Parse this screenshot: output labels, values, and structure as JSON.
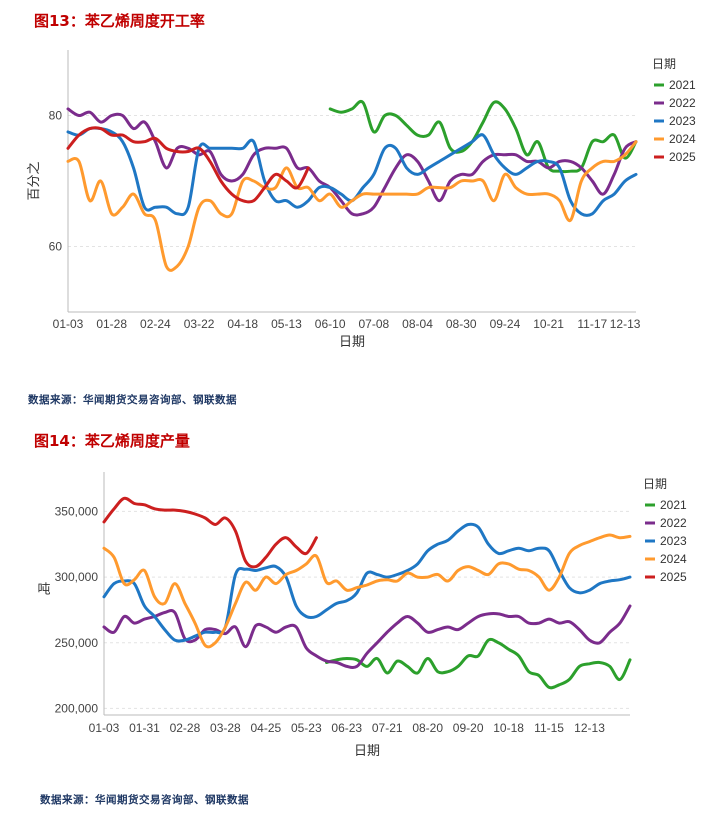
{
  "fig13": {
    "title": "图13：苯乙烯周度开工率",
    "source": "数据来源：华闻期货交易咨询部、钢联数据"
  },
  "fig14": {
    "title": "图14：苯乙烯周度产量",
    "source": "数据来源：华闻期货交易咨询部、钢联数据"
  },
  "chart_data": [
    {
      "type": "line",
      "title": "",
      "xlabel": "日期",
      "ylabel": "百分之",
      "legend_title": "日期",
      "legend_position": "right",
      "grid": true,
      "ylim": [
        50,
        90
      ],
      "y_ticks": [
        60,
        80
      ],
      "y_tick_labels": [
        "60",
        "80"
      ],
      "x_range": [
        1,
        53
      ],
      "x_ticks": [
        1,
        5,
        9,
        13,
        17,
        21,
        25,
        29,
        33,
        37,
        41,
        45,
        49,
        52
      ],
      "x_tick_labels": [
        "01-03",
        "01-28",
        "02-24",
        "03-22",
        "04-18",
        "05-13",
        "06-10",
        "07-08",
        "08-04",
        "08-30",
        "09-24",
        "10-21",
        "11-17",
        "12-13"
      ],
      "series": [
        {
          "name": "2021",
          "color": "#2ca02c",
          "x": [
            25,
            26,
            27,
            28,
            29,
            30,
            31,
            32,
            33,
            34,
            35,
            36,
            37,
            38,
            39,
            40,
            41,
            42,
            43,
            44,
            45,
            46,
            47,
            48,
            49,
            50,
            51,
            52,
            53
          ],
          "y": [
            81,
            80.5,
            81,
            82,
            77.5,
            80,
            80,
            78.5,
            77,
            77,
            79,
            75,
            74.5,
            76,
            79,
            82,
            81,
            78,
            74,
            76,
            72,
            71.5,
            71.5,
            72,
            76,
            76,
            77,
            73.5,
            76
          ]
        },
        {
          "name": "2022",
          "color": "#7b2c8c",
          "x": [
            1,
            2,
            3,
            4,
            5,
            6,
            7,
            8,
            9,
            10,
            11,
            12,
            13,
            14,
            15,
            16,
            17,
            18,
            19,
            20,
            21,
            22,
            23,
            24,
            25,
            26,
            27,
            28,
            29,
            30,
            31,
            32,
            33,
            34,
            35,
            36,
            37,
            38,
            39,
            40,
            41,
            42,
            43,
            44,
            45,
            46,
            47,
            48,
            49,
            50,
            51,
            52,
            53
          ],
          "y": [
            81,
            80,
            80.5,
            79,
            80,
            80,
            78,
            79,
            76,
            72,
            75,
            75,
            74,
            74.5,
            71,
            70,
            71,
            74,
            75,
            75,
            75,
            72,
            72,
            70,
            69,
            67,
            65,
            65,
            66,
            69,
            72,
            74,
            73,
            70,
            67,
            70,
            71,
            71,
            73,
            74,
            74,
            74,
            73,
            73,
            72,
            73,
            73,
            72,
            70,
            68,
            71,
            75,
            76
          ]
        },
        {
          "name": "2023",
          "color": "#1f77c4",
          "x": [
            1,
            2,
            3,
            4,
            5,
            6,
            7,
            8,
            9,
            10,
            11,
            12,
            13,
            14,
            15,
            16,
            17,
            18,
            19,
            20,
            21,
            22,
            23,
            24,
            25,
            26,
            27,
            28,
            29,
            30,
            31,
            32,
            33,
            34,
            35,
            36,
            37,
            38,
            39,
            40,
            41,
            42,
            43,
            44,
            45,
            46,
            47,
            48,
            49,
            50,
            51,
            52,
            53
          ],
          "y": [
            77.5,
            77,
            78,
            78,
            77.5,
            76,
            72,
            66,
            66,
            66,
            65,
            66,
            75,
            75,
            75,
            75,
            75,
            76,
            70,
            67,
            67,
            66,
            67,
            69,
            69,
            68,
            67,
            69,
            71,
            75,
            75,
            72,
            71,
            72,
            73,
            74,
            75,
            76,
            77,
            74,
            72,
            71,
            72,
            73,
            73,
            72,
            67,
            65,
            65,
            67,
            68,
            70,
            71
          ]
        },
        {
          "name": "2024",
          "color": "#ff9a2e",
          "x": [
            1,
            2,
            3,
            4,
            5,
            6,
            7,
            8,
            9,
            10,
            11,
            12,
            13,
            14,
            15,
            16,
            17,
            18,
            19,
            20,
            21,
            22,
            23,
            24,
            25,
            26,
            27,
            28,
            29,
            30,
            31,
            32,
            33,
            34,
            35,
            36,
            37,
            38,
            39,
            40,
            41,
            42,
            43,
            44,
            45,
            46,
            47,
            48,
            49,
            50,
            51,
            52,
            53
          ],
          "y": [
            73,
            73,
            67,
            70,
            65,
            66,
            68,
            65,
            64,
            57,
            57,
            60,
            66,
            67,
            65,
            65,
            70,
            70,
            69,
            69,
            72,
            69,
            69,
            67,
            68,
            66,
            67,
            68,
            68,
            68,
            68,
            68,
            68,
            69,
            69,
            69,
            70,
            70,
            70,
            67,
            71,
            69,
            68,
            68,
            68,
            67,
            64,
            70,
            72,
            73,
            73,
            74,
            76
          ]
        },
        {
          "name": "2025",
          "color": "#cc1f1f",
          "x": [
            1,
            2,
            3,
            4,
            5,
            6,
            7,
            8,
            9,
            10,
            11,
            12,
            13,
            14,
            15,
            16,
            17,
            18,
            19,
            20,
            21,
            22,
            23
          ],
          "y": [
            75,
            77,
            78,
            78,
            77,
            77,
            76,
            76,
            76.5,
            75,
            74.5,
            74.5,
            75,
            73,
            70,
            68,
            67,
            67,
            69,
            71,
            70,
            69,
            72
          ]
        }
      ]
    },
    {
      "type": "line",
      "title": "",
      "xlabel": "日期",
      "ylabel": "吨",
      "legend_title": "日期",
      "legend_position": "right",
      "grid": true,
      "ylim": [
        195000,
        380000
      ],
      "y_ticks": [
        200000,
        250000,
        300000,
        350000
      ],
      "y_tick_labels": [
        "200,000",
        "250,000",
        "300,000",
        "350,000"
      ],
      "x_range": [
        1,
        53
      ],
      "x_ticks": [
        1,
        5,
        9,
        13,
        17,
        21,
        25,
        29,
        33,
        37,
        41,
        45,
        49,
        52
      ],
      "x_tick_labels": [
        "01-03",
        "01-31",
        "02-28",
        "03-28",
        "04-25",
        "05-23",
        "06-23",
        "07-21",
        "08-20",
        "09-20",
        "10-18",
        "11-15",
        "12-13",
        ""
      ],
      "series": [
        {
          "name": "2021",
          "color": "#2ca02c",
          "x": [
            23,
            24,
            25,
            26,
            27,
            28,
            29,
            30,
            31,
            32,
            33,
            34,
            35,
            36,
            37,
            38,
            39,
            40,
            41,
            42,
            43,
            44,
            45,
            46,
            47,
            48,
            49,
            50,
            51,
            52,
            53
          ],
          "y": [
            235000,
            237000,
            238000,
            237000,
            232000,
            238000,
            227000,
            236000,
            232000,
            227000,
            238000,
            228000,
            228000,
            232000,
            240000,
            240000,
            252000,
            250000,
            245000,
            240000,
            228000,
            225000,
            216000,
            218000,
            222000,
            232000,
            234000,
            235000,
            232000,
            222000,
            237000
          ]
        },
        {
          "name": "2022",
          "color": "#7b2c8c",
          "x": [
            1,
            2,
            3,
            4,
            5,
            6,
            7,
            8,
            9,
            10,
            11,
            12,
            13,
            14,
            15,
            16,
            17,
            18,
            19,
            20,
            21,
            22,
            23,
            24,
            25,
            26,
            27,
            28,
            29,
            30,
            31,
            32,
            33,
            34,
            35,
            36,
            37,
            38,
            39,
            40,
            41,
            42,
            43,
            44,
            45,
            46,
            47,
            48,
            49,
            50,
            51,
            52,
            53
          ],
          "y": [
            262000,
            258000,
            270000,
            265000,
            268000,
            270000,
            273000,
            273000,
            253000,
            252000,
            260000,
            260000,
            257000,
            262000,
            247000,
            263000,
            262000,
            258000,
            262000,
            262000,
            246000,
            240000,
            236000,
            235000,
            232000,
            232000,
            242000,
            250000,
            258000,
            265000,
            270000,
            265000,
            258000,
            260000,
            262000,
            260000,
            265000,
            270000,
            272000,
            272000,
            270000,
            270000,
            265000,
            265000,
            268000,
            265000,
            266000,
            260000,
            252000,
            250000,
            258000,
            265000,
            278000
          ]
        },
        {
          "name": "2023",
          "color": "#1f77c4",
          "x": [
            1,
            2,
            3,
            4,
            5,
            6,
            7,
            8,
            9,
            10,
            11,
            12,
            13,
            14,
            15,
            16,
            17,
            18,
            19,
            20,
            21,
            22,
            23,
            24,
            25,
            26,
            27,
            28,
            29,
            30,
            31,
            32,
            33,
            34,
            35,
            36,
            37,
            38,
            39,
            40,
            41,
            42,
            43,
            44,
            45,
            46,
            47,
            48,
            49,
            50,
            51,
            52,
            53
          ],
          "y": [
            285000,
            295000,
            297000,
            295000,
            278000,
            270000,
            260000,
            252000,
            252000,
            255000,
            258000,
            258000,
            262000,
            302000,
            306000,
            305000,
            307000,
            308000,
            300000,
            278000,
            270000,
            270000,
            275000,
            280000,
            282000,
            288000,
            303000,
            302000,
            300000,
            302000,
            305000,
            310000,
            320000,
            325000,
            328000,
            335000,
            340000,
            338000,
            325000,
            318000,
            320000,
            322000,
            320000,
            322000,
            320000,
            305000,
            292000,
            288000,
            290000,
            295000,
            297000,
            298000,
            300000
          ]
        },
        {
          "name": "2024",
          "color": "#ff9a2e",
          "x": [
            1,
            2,
            3,
            4,
            5,
            6,
            7,
            8,
            9,
            10,
            11,
            12,
            13,
            14,
            15,
            16,
            17,
            18,
            19,
            20,
            21,
            22,
            23,
            24,
            25,
            26,
            27,
            28,
            29,
            30,
            31,
            32,
            33,
            34,
            35,
            36,
            37,
            38,
            39,
            40,
            41,
            42,
            43,
            44,
            45,
            46,
            47,
            48,
            49,
            50,
            51,
            52,
            53
          ],
          "y": [
            322000,
            315000,
            295000,
            298000,
            305000,
            285000,
            280000,
            295000,
            280000,
            265000,
            248000,
            250000,
            262000,
            280000,
            296000,
            290000,
            300000,
            295000,
            302000,
            305000,
            310000,
            316000,
            296000,
            297000,
            290000,
            292000,
            294000,
            297000,
            298000,
            297000,
            303000,
            300000,
            300000,
            302000,
            297000,
            305000,
            308000,
            305000,
            302000,
            310000,
            310000,
            306000,
            305000,
            300000,
            290000,
            300000,
            318000,
            324000,
            327000,
            330000,
            332000,
            330000,
            331000
          ]
        },
        {
          "name": "2025",
          "color": "#cc1f1f",
          "x": [
            1,
            2,
            3,
            4,
            5,
            6,
            7,
            8,
            9,
            10,
            11,
            12,
            13,
            14,
            15,
            16,
            17,
            18,
            19,
            20,
            21,
            22
          ],
          "y": [
            342000,
            352000,
            360000,
            356000,
            355000,
            352000,
            351000,
            351000,
            350000,
            348000,
            345000,
            340000,
            345000,
            335000,
            312000,
            308000,
            315000,
            325000,
            330000,
            323000,
            318000,
            330000
          ]
        }
      ]
    }
  ]
}
